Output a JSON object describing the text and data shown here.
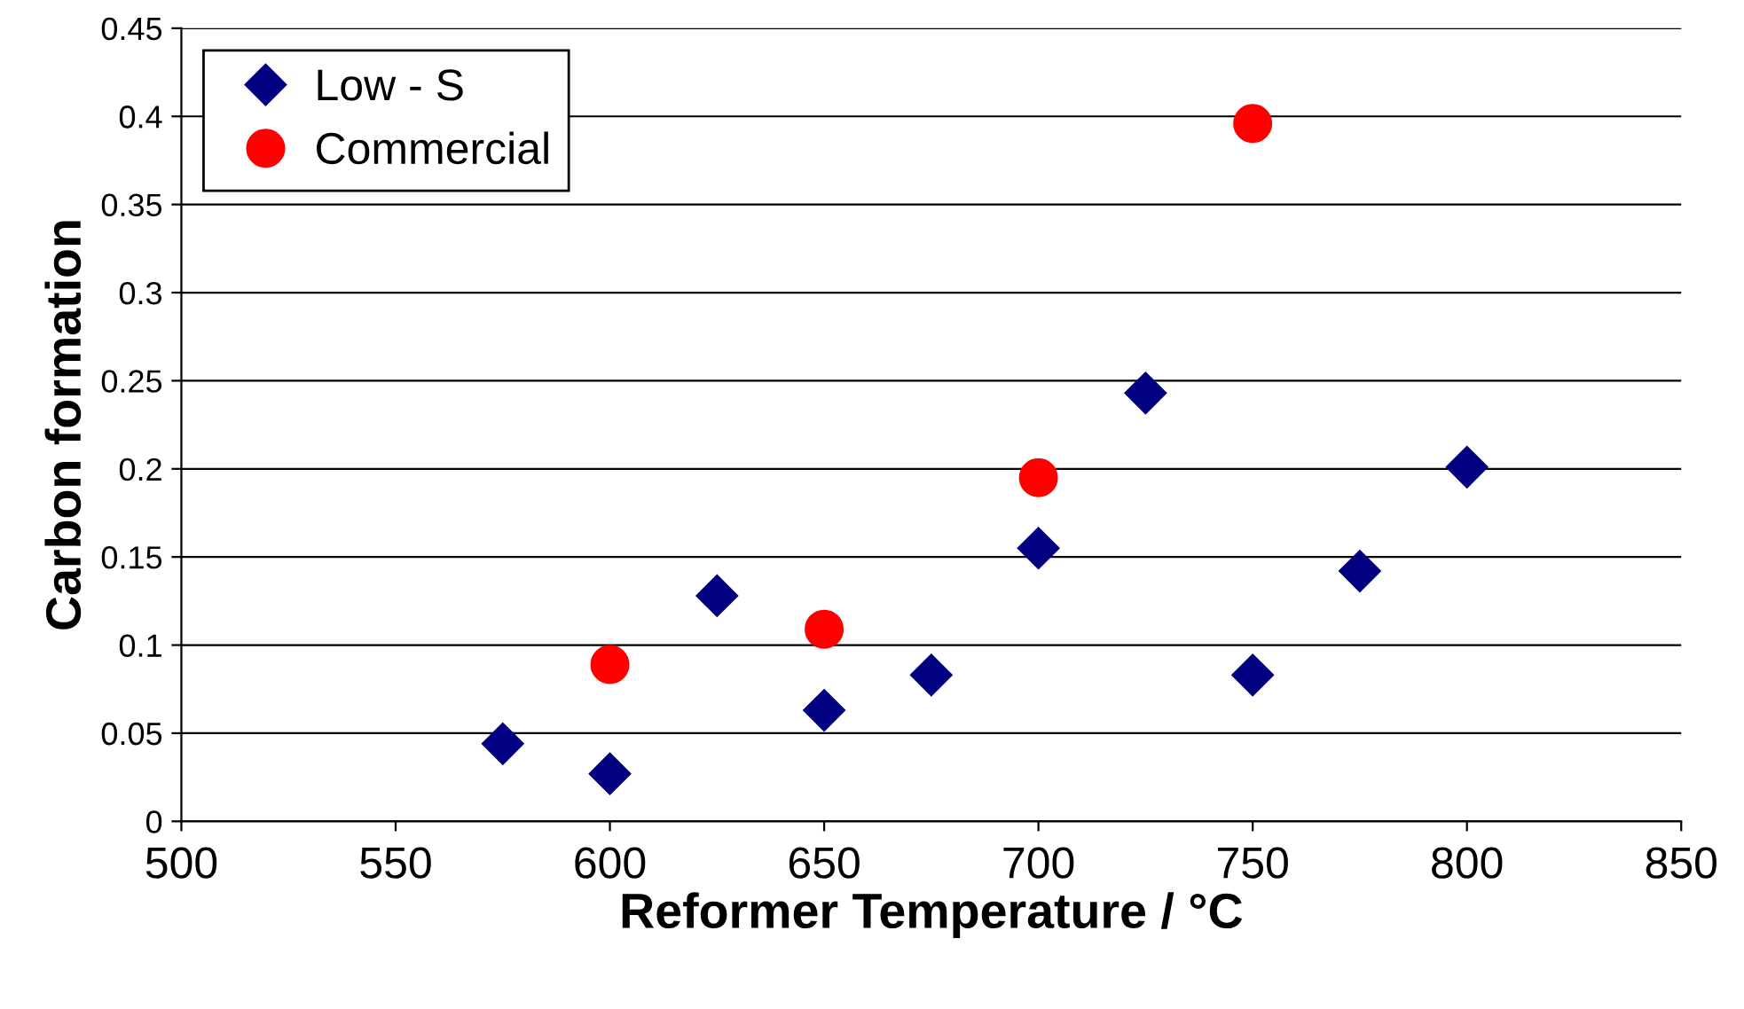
{
  "chart_data": {
    "type": "scatter",
    "xlabel": "Reformer Temperature / °C",
    "ylabel": "Carbon formation",
    "series": [
      {
        "name": "Low - S",
        "color": "#000080",
        "marker": "diamond",
        "x": [
          575,
          600,
          625,
          650,
          675,
          700,
          725,
          750,
          775,
          800
        ],
        "values": [
          0.044,
          0.027,
          0.128,
          0.063,
          0.083,
          0.155,
          0.243,
          0.083,
          0.142,
          0.201
        ]
      },
      {
        "name": "Commercial",
        "color": "#ff0000",
        "marker": "circle",
        "x": [
          600,
          650,
          700,
          750
        ],
        "values": [
          0.089,
          0.109,
          0.195,
          0.396
        ]
      }
    ],
    "xlim": [
      500,
      850
    ],
    "xticks": [
      500,
      550,
      600,
      650,
      700,
      750,
      800,
      850
    ],
    "ylim": [
      0,
      0.45
    ],
    "yticks": [
      0,
      0.05,
      0.1,
      0.15,
      0.2,
      0.25,
      0.3,
      0.35,
      0.4,
      0.45
    ],
    "grid": "y",
    "legend": "top left"
  }
}
